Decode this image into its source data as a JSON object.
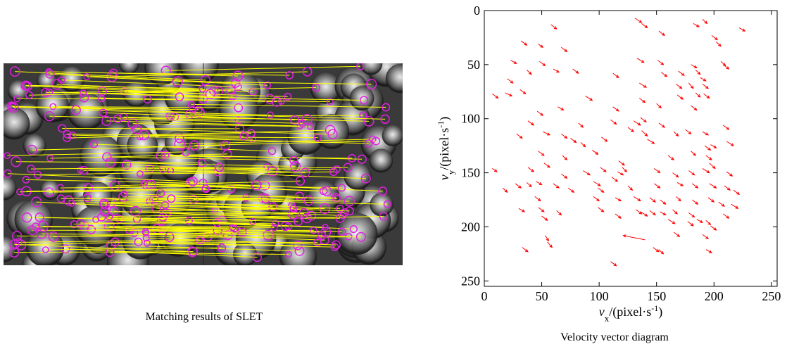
{
  "image_panel": {
    "caption": "Matching results of SLET"
  },
  "chart_data": {
    "type": "quiver",
    "caption": "Velocity vector diagram",
    "xlabel": [
      "v",
      "x",
      "/(pixel·s",
      "-1",
      ")"
    ],
    "ylabel": [
      "v",
      "y",
      "/(pixel·s",
      "-1",
      ")"
    ],
    "xlim": [
      0,
      255
    ],
    "ylim": [
      0,
      255
    ],
    "y_inverted": true,
    "xticks": [
      0,
      50,
      100,
      150,
      200,
      250
    ],
    "yticks": [
      0,
      50,
      100,
      150,
      200,
      250
    ],
    "color": "#ff0000",
    "x": [
      58,
      131,
      137,
      182,
      190,
      222,
      152,
      32,
      47,
      67,
      198,
      202,
      23,
      48,
      133,
      151,
      180,
      206,
      208,
      20,
      37,
      60,
      77,
      112,
      135,
      154,
      169,
      184,
      188,
      167,
      178,
      190,
      7,
      18,
      31,
      168,
      184,
      191,
      46,
      64,
      88,
      112,
      135,
      150,
      180,
      208,
      38,
      82,
      110,
      130,
      136,
      137,
      152,
      165,
      175,
      28,
      51,
      67,
      75,
      84,
      102,
      125,
      142,
      190,
      47,
      68,
      94,
      117,
      160,
      180,
      192,
      197,
      211,
      193,
      196,
      7,
      38,
      52,
      67,
      86,
      101,
      116,
      120,
      148,
      164,
      178,
      190,
      211,
      27,
      37,
      45,
      60,
      73,
      95,
      99,
      111,
      125,
      148,
      168,
      181,
      196,
      209,
      217,
      16,
      44,
      95,
      114,
      130,
      144,
      153,
      167,
      181,
      195,
      204,
      215,
      30,
      47,
      63,
      99,
      114,
      132,
      136,
      144,
      153,
      164,
      178,
      208,
      50,
      160,
      177,
      185,
      193,
      197,
      165,
      190,
      53,
      55,
      140,
      33,
      147,
      152,
      193,
      110
    ],
    "y": [
      13,
      7,
      12,
      12,
      8,
      16,
      19,
      28,
      31,
      34,
      23,
      29,
      46,
      47,
      44,
      46,
      50,
      47,
      50,
      63,
      55,
      54,
      54,
      58,
      67,
      57,
      56,
      55,
      62,
      68,
      67,
      68,
      77,
      76,
      73,
      78,
      76,
      77,
      93,
      89,
      79,
      89,
      81,
      86,
      88,
      106,
      102,
      104,
      101,
      102,
      99,
      111,
      104,
      112,
      110,
      114,
      112,
      114,
      118,
      122,
      117,
      108,
      119,
      112,
      130,
      134,
      129,
      139,
      134,
      130,
      125,
      124,
      121,
      134,
      141,
      146,
      145,
      141,
      151,
      148,
      145,
      149,
      145,
      146,
      150,
      148,
      146,
      149,
      160,
      159,
      158,
      160,
      164,
      158,
      164,
      154,
      162,
      160,
      159,
      160,
      160,
      162,
      166,
      164,
      172,
      172,
      173,
      172,
      173,
      175,
      172,
      175,
      173,
      177,
      179,
      183,
      182,
      185,
      182,
      188,
      184,
      186,
      185,
      186,
      184,
      187,
      188,
      190,
      193,
      195,
      193,
      194,
      199,
      205,
      207,
      208,
      214,
      212,
      219,
      219,
      221,
      221,
      232
    ],
    "u": [
      5,
      6,
      5,
      5,
      4,
      5,
      5,
      5,
      4,
      5,
      5,
      4,
      5,
      5,
      6,
      5,
      5,
      4,
      5,
      5,
      4,
      5,
      5,
      5,
      6,
      5,
      5,
      4,
      5,
      5,
      4,
      5,
      5,
      6,
      5,
      5,
      4,
      5,
      5,
      5,
      6,
      5,
      5,
      4,
      5,
      5,
      5,
      4,
      5,
      6,
      5,
      5,
      5,
      4,
      5,
      5,
      6,
      5,
      5,
      4,
      5,
      5,
      6,
      5,
      5,
      4,
      5,
      5,
      5,
      4,
      5,
      5,
      6,
      5,
      5,
      4,
      5,
      5,
      5,
      6,
      5,
      5,
      4,
      5,
      5,
      5,
      6,
      5,
      5,
      4,
      5,
      5,
      5,
      6,
      5,
      5,
      4,
      5,
      5,
      5,
      6,
      5,
      5,
      4,
      5,
      5,
      5,
      6,
      5,
      5,
      4,
      5,
      5,
      5,
      6,
      5,
      5,
      4,
      5,
      5,
      5,
      6,
      5,
      5,
      4,
      5,
      5,
      5,
      6,
      5,
      5,
      4,
      5,
      5,
      5,
      3,
      4,
      -19,
      5,
      5,
      4,
      5,
      5
    ],
    "v": [
      4,
      4,
      4,
      3,
      4,
      3,
      4,
      4,
      3,
      4,
      4,
      4,
      3,
      4,
      4,
      4,
      3,
      4,
      4,
      4,
      4,
      3,
      4,
      4,
      4,
      4,
      4,
      4,
      3,
      4,
      5,
      4,
      4,
      3,
      4,
      4,
      4,
      4,
      4,
      3,
      4,
      4,
      4,
      4,
      4,
      4,
      4,
      4,
      4,
      4,
      4,
      5,
      4,
      4,
      4,
      4,
      3,
      4,
      4,
      4,
      4,
      4,
      4,
      3,
      4,
      4,
      4,
      4,
      4,
      4,
      4,
      3,
      4,
      4,
      5,
      3,
      4,
      4,
      4,
      4,
      4,
      3,
      4,
      4,
      4,
      4,
      4,
      4,
      4,
      4,
      3,
      4,
      4,
      4,
      4,
      4,
      4,
      4,
      3,
      4,
      4,
      4,
      4,
      4,
      4,
      4,
      3,
      4,
      4,
      4,
      4,
      4,
      4,
      4,
      4,
      3,
      4,
      4,
      4,
      4,
      4,
      4,
      4,
      3,
      4,
      4,
      4,
      4,
      4,
      4,
      3,
      4,
      4,
      4,
      4,
      5,
      5,
      -4,
      4,
      4,
      4,
      3,
      4
    ]
  }
}
